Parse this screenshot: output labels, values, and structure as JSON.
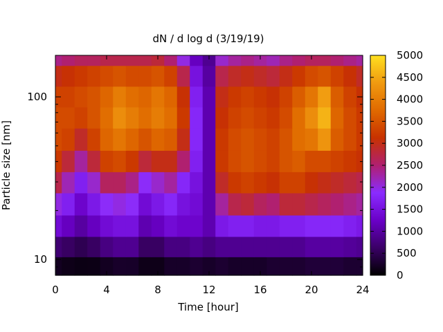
{
  "chart_data": {
    "type": "heatmap",
    "title": "dN / d log d (3/19/19)",
    "xlabel": "Time [hour]",
    "ylabel": "Particle size [nm]",
    "xlim": [
      0,
      24
    ],
    "ylim": [
      8,
      180
    ],
    "y_scale": "log",
    "x_ticks": [
      0,
      4,
      8,
      12,
      16,
      20,
      24
    ],
    "y_ticks": [
      10,
      100
    ],
    "colorbar": {
      "min": 0,
      "max": 5000,
      "ticks": [
        0,
        500,
        1000,
        1500,
        2000,
        2500,
        3000,
        3500,
        4000,
        4500,
        5000
      ],
      "colormap": [
        "#000000",
        "#3a0066",
        "#6a00c8",
        "#8a2cff",
        "#b02070",
        "#c83200",
        "#e06a00",
        "#f09a10",
        "#ffe020"
      ]
    },
    "time_hours": [
      0,
      1,
      2,
      3,
      4,
      5,
      6,
      7,
      8,
      9,
      10,
      11,
      12,
      13,
      14,
      15,
      16,
      17,
      18,
      19,
      20,
      21,
      22,
      23,
      24
    ],
    "size_nm": [
      9,
      12,
      16,
      22,
      30,
      40,
      55,
      75,
      100,
      135,
      180
    ],
    "values": [
      [
        200,
        150,
        120,
        130,
        200,
        260,
        250,
        150,
        150,
        250,
        250,
        300,
        250,
        300,
        250,
        250,
        250,
        300,
        300,
        300,
        350,
        350,
        350,
        300,
        300
      ],
      [
        700,
        600,
        500,
        600,
        800,
        900,
        900,
        600,
        600,
        800,
        800,
        900,
        800,
        900,
        900,
        900,
        900,
        900,
        900,
        900,
        1000,
        1000,
        1000,
        950,
        900
      ],
      [
        1400,
        1200,
        1000,
        1200,
        1400,
        1500,
        1500,
        1100,
        1200,
        1400,
        1300,
        1300,
        1100,
        1600,
        1700,
        1700,
        1600,
        1600,
        1700,
        1700,
        1800,
        1800,
        1800,
        1700,
        1600
      ],
      [
        2000,
        1700,
        1300,
        1600,
        1900,
        2000,
        1900,
        1400,
        1600,
        1800,
        1500,
        1400,
        1100,
        2300,
        2700,
        2800,
        2600,
        2500,
        2800,
        2800,
        2700,
        2600,
        2500,
        2400,
        2300
      ],
      [
        2700,
        2200,
        1700,
        2100,
        2600,
        2600,
        2400,
        1900,
        2100,
        2300,
        1800,
        1500,
        1100,
        2900,
        3200,
        3300,
        3200,
        3100,
        3300,
        3300,
        3100,
        3000,
        2900,
        2800,
        2700
      ],
      [
        3200,
        2800,
        2300,
        2800,
        3300,
        3400,
        3200,
        2800,
        3000,
        3000,
        2500,
        1700,
        1100,
        3200,
        3400,
        3500,
        3400,
        3300,
        3500,
        3600,
        3400,
        3400,
        3300,
        3200,
        3100
      ],
      [
        3400,
        3300,
        2900,
        3300,
        3700,
        3900,
        3700,
        3500,
        3700,
        3600,
        3000,
        1800,
        1100,
        3200,
        3400,
        3500,
        3400,
        3300,
        3500,
        3800,
        3900,
        4300,
        3600,
        3400,
        3200
      ],
      [
        3400,
        3400,
        3300,
        3500,
        3800,
        4200,
        4000,
        3800,
        4000,
        3800,
        3200,
        1800,
        1100,
        3100,
        3300,
        3400,
        3300,
        3200,
        3400,
        3800,
        4200,
        4600,
        3700,
        3400,
        3200
      ],
      [
        3300,
        3300,
        3400,
        3500,
        3700,
        4000,
        3800,
        3700,
        3900,
        3700,
        3100,
        1700,
        1100,
        3000,
        3200,
        3300,
        3200,
        3100,
        3300,
        3600,
        3900,
        4400,
        3600,
        3300,
        3100
      ],
      [
        3000,
        3100,
        3200,
        3300,
        3400,
        3500,
        3400,
        3400,
        3500,
        3300,
        2700,
        1500,
        1000,
        2700,
        2900,
        3000,
        2900,
        2800,
        3000,
        3200,
        3400,
        3500,
        3300,
        3100,
        2900
      ],
      [
        2400,
        2500,
        2600,
        2600,
        2700,
        2700,
        2700,
        2700,
        2800,
        2500,
        2000,
        1200,
        900,
        2100,
        2300,
        2400,
        2300,
        2200,
        2400,
        2500,
        2600,
        2600,
        2500,
        2400,
        2300
      ]
    ]
  }
}
